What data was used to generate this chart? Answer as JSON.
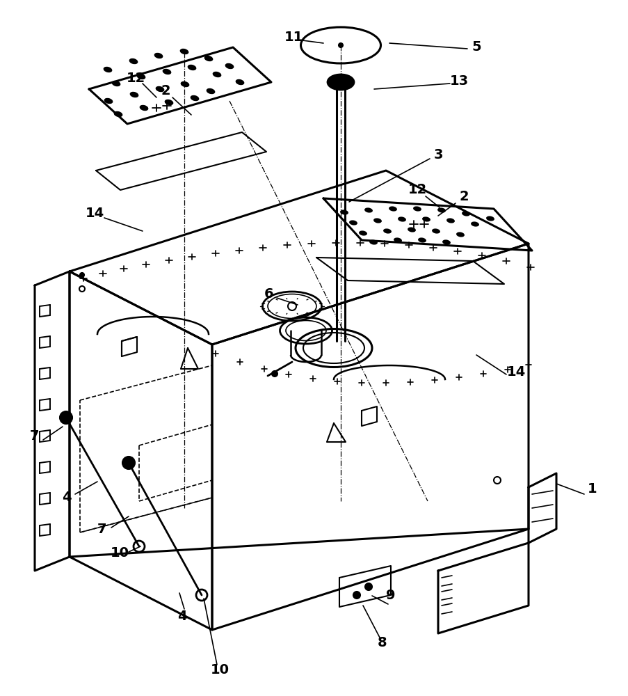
{
  "bg_color": "#ffffff",
  "figsize": [
    9.04,
    10.0
  ],
  "dpi": 100,
  "lw_thick": 2.2,
  "lw_med": 1.5,
  "lw_thin": 1.0,
  "lw_label": 1.2
}
